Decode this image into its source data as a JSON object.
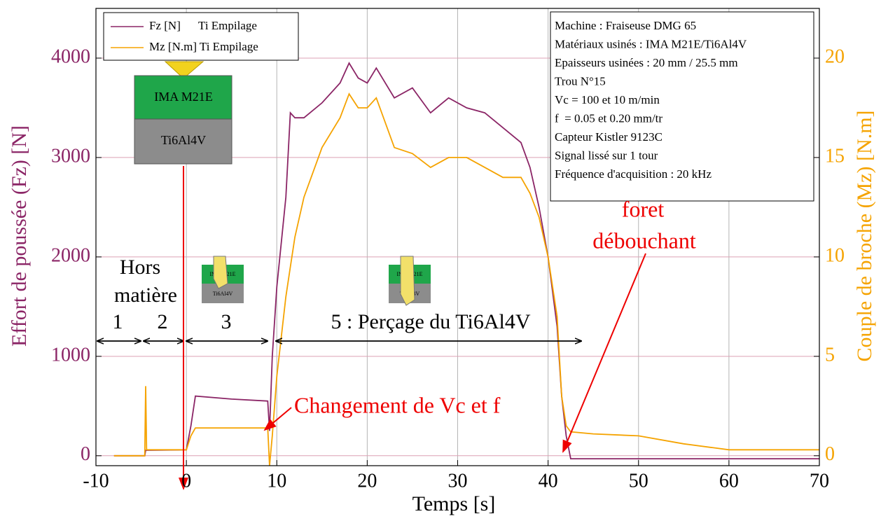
{
  "chart_data": {
    "type": "line",
    "xlabel": "Temps [s]",
    "ylabel": "Effort de poussée (Fz) [N]",
    "y2label": "Couple de broche (Mz) [N.m]",
    "x": [
      -8,
      -4.6,
      -4.5,
      -4.4,
      0,
      0.5,
      1,
      5,
      9,
      9.2,
      9.5,
      10,
      11,
      11.5,
      12,
      13,
      15,
      17,
      18,
      19,
      20,
      21,
      23,
      25,
      27,
      29,
      31,
      33,
      35,
      37,
      38,
      39,
      40,
      41,
      41.5,
      42,
      42.5,
      45,
      50,
      55,
      60,
      70
    ],
    "series": [
      {
        "name": "Fz [N]      Ti Empilage",
        "color": "#8b2566",
        "axis": "y",
        "values": [
          0,
          0,
          55,
          55,
          60,
          300,
          600,
          570,
          550,
          250,
          1000,
          1700,
          2600,
          3450,
          3400,
          3400,
          3550,
          3750,
          3950,
          3800,
          3750,
          3900,
          3600,
          3700,
          3450,
          3600,
          3500,
          3450,
          3300,
          3150,
          2900,
          2500,
          2000,
          1300,
          600,
          200,
          -30,
          -30,
          -30,
          -30,
          -30,
          -30
        ]
      },
      {
        "name": "Mz [N.m] Ti Empilage",
        "color": "#f5a300",
        "axis": "y2",
        "values": [
          0,
          0,
          3.5,
          0.3,
          0.3,
          1.0,
          1.4,
          1.4,
          1.4,
          -0.5,
          1,
          4,
          8,
          9.5,
          11,
          13,
          15.5,
          17,
          18.2,
          17.5,
          17.5,
          18,
          15.5,
          15.2,
          14.5,
          15,
          15,
          14.5,
          14,
          14,
          13.2,
          12,
          10,
          7,
          3,
          1.5,
          1.2,
          1.1,
          1.0,
          0.6,
          0.3,
          0.3
        ]
      }
    ],
    "xlim": [
      -10,
      70
    ],
    "xticks": [
      -10,
      0,
      10,
      20,
      30,
      40,
      50,
      60,
      70
    ],
    "ylim": [
      -100,
      4500
    ],
    "yticks": [
      0,
      1000,
      2000,
      3000,
      4000
    ],
    "y2lim": [
      -0.5,
      22.5
    ],
    "y2ticks": [
      0,
      5,
      10,
      15,
      20
    ],
    "grid": true,
    "legend": "upper left",
    "info_box": [
      "Machine : Fraiseuse DMG 65",
      "Matériaux usinés : IMA M21E/Ti6Al4V",
      "Epaisseurs usinées : 20 mm / 25.5 mm",
      "Trou N°15",
      "Vc = 100 et 10 m/min",
      "f  = 0.05 et 0.20 mm/tr",
      "Capteur Kistler 9123C",
      "Signal lissé sur 1 tour",
      "Fréquence d'acquisition : 20 kHz"
    ],
    "annotations": {
      "hors": "Hors",
      "matiere": "matière",
      "phase1": "1",
      "phase2": "2",
      "phase3": "3",
      "phase5": "5 : Perçage du Ti6Al4V",
      "changement": "Changement de Vc et f",
      "foret": "foret",
      "debouchant": "débouchant",
      "layer_top": "IMA M21E",
      "layer_bottom": "Ti6Al4V"
    }
  }
}
